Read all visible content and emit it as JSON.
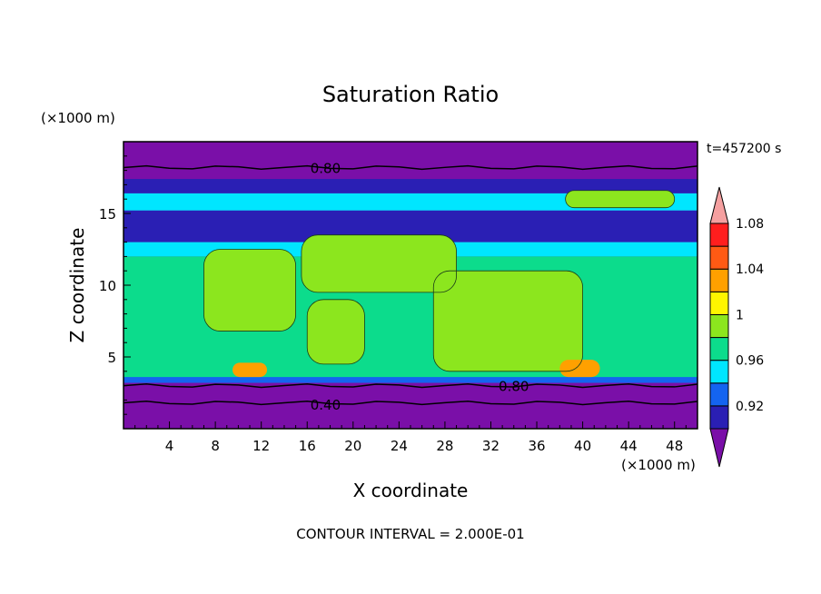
{
  "chart_data": {
    "type": "contour",
    "title": "Saturation Ratio",
    "xlabel": "X coordinate",
    "ylabel": "Z coordinate",
    "x_unit": "(×1000 m)",
    "y_unit": "(×1000 m)",
    "time_label": "t=457200 s",
    "footer": "CONTOUR INTERVAL = 2.000E-01",
    "xlim": [
      0,
      50
    ],
    "ylim": [
      0,
      20
    ],
    "x_ticks": [
      4,
      8,
      12,
      16,
      20,
      24,
      28,
      32,
      36,
      40,
      44,
      48
    ],
    "y_ticks": [
      5,
      10,
      15
    ],
    "contour_line_labels": [
      {
        "text": "0.80",
        "x": 17.6,
        "y": 18.2
      },
      {
        "text": "0.80",
        "x": 34.0,
        "y": 3.0
      },
      {
        "text": "0.40",
        "x": 17.6,
        "y": 1.7
      }
    ],
    "colorbar": {
      "levels": [
        0.92,
        0.96,
        1,
        1.04,
        1.08
      ],
      "level_labels": [
        "0.92",
        "0.96",
        "1",
        "1.04",
        "1.08"
      ],
      "colors": [
        "#7a0fa8",
        "#2a1fb4",
        "#1464f0",
        "#00e6ff",
        "#0cdc8c",
        "#8ce61e",
        "#fff500",
        "#ffa000",
        "#ff5a14",
        "#ff1e1e",
        "#f5a0a0"
      ]
    },
    "regions": [
      {
        "level": "0.90",
        "color": "#7a0fa8",
        "x0": 0,
        "x1": 50,
        "y0": 0,
        "y1": 20
      },
      {
        "level": "0.94",
        "color": "#2a1fb4",
        "x0": 0,
        "x1": 50,
        "y0": 16.4,
        "y1": 17.4
      },
      {
        "level": "0.98",
        "color": "#00e6ff",
        "x0": 0,
        "x1": 50,
        "y0": 15.2,
        "y1": 16.4
      },
      {
        "level": "0.94",
        "color": "#2a1fb4",
        "x0": 0,
        "x1": 50,
        "y0": 13.0,
        "y1": 15.2
      },
      {
        "level": "0.98",
        "color": "#00e6ff",
        "x0": 0,
        "x1": 50,
        "y0": 12.0,
        "y1": 13.0
      },
      {
        "level": "1.00",
        "color": "#0cdc8c",
        "x0": 0,
        "x1": 50,
        "y0": 3.2,
        "y1": 12.0
      },
      {
        "level": "1.02",
        "color": "#8ce61e",
        "x0": 7,
        "x1": 15,
        "y0": 6.8,
        "y1": 12.5
      },
      {
        "level": "1.02",
        "color": "#8ce61e",
        "x0": 15.5,
        "x1": 29,
        "y0": 9.5,
        "y1": 13.5
      },
      {
        "level": "1.02",
        "color": "#8ce61e",
        "x0": 27,
        "x1": 40,
        "y0": 4.0,
        "y1": 11.0
      },
      {
        "level": "1.02",
        "color": "#8ce61e",
        "x0": 16,
        "x1": 21,
        "y0": 4.5,
        "y1": 9.0
      },
      {
        "level": "1.02",
        "color": "#8ce61e",
        "x0": 38.5,
        "x1": 48,
        "y0": 15.4,
        "y1": 16.6
      },
      {
        "level": "0.96",
        "color": "#1464f0",
        "x0": 0,
        "x1": 50,
        "y0": 3.2,
        "y1": 3.6
      },
      {
        "level": "1.06",
        "color": "#ffa000",
        "x0": 9.5,
        "x1": 12.5,
        "y0": 3.6,
        "y1": 4.6
      },
      {
        "level": "1.06",
        "color": "#ffa000",
        "x0": 38,
        "x1": 41.5,
        "y0": 3.6,
        "y1": 4.8
      }
    ]
  }
}
